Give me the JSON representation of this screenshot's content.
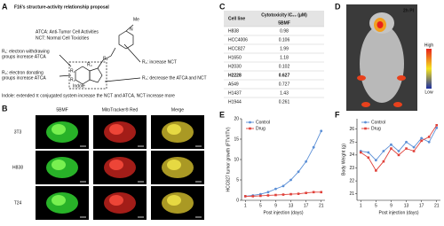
{
  "panel_a": {
    "label": "A",
    "title": "F16's structure-activity relationship proposal",
    "legend": [
      "ATCA: Anti-Tumor Cell Activities",
      "NCT: Normal Cell Toxicities"
    ],
    "structure": {
      "methyl": "Me",
      "nitrogen": "N",
      "indole": "Indole",
      "groups": [
        "R₁",
        "R₂",
        "R₃",
        "R₄"
      ]
    },
    "rules": [
      [
        "R₁: electron withdrawing",
        "groups increase ATCA"
      ],
      [
        "R₂: increase NCT"
      ],
      [
        "R₃: electron donating",
        "groups increase ATCA"
      ],
      [
        "R₄: decrease the ATCA and NCT"
      ]
    ],
    "note": "Indole: extended π conjugated system increase the NCT and ATCA, NCT increase more"
  },
  "panel_b": {
    "label": "B",
    "columns": [
      "5BMF",
      "MitoTracker® Red",
      "Merge"
    ],
    "rows": [
      "3T3",
      "H838",
      "T24"
    ]
  },
  "panel_c": {
    "label": "C",
    "header": [
      "Cell line",
      "Cytotoxicity IC₅₀ (μM)"
    ],
    "subheader": "5BMF",
    "rows": [
      [
        "H838",
        "0.98"
      ],
      [
        "HCC4006",
        "0.106"
      ],
      [
        "HCC827",
        "1.99"
      ],
      [
        "H1650",
        "1.18"
      ],
      [
        "H2030",
        "0.102"
      ],
      [
        "H2228",
        "0.627"
      ],
      [
        "A549",
        "0.727"
      ],
      [
        "H1437",
        "1.43"
      ],
      [
        "H1944",
        "0.261"
      ]
    ],
    "highlight_row": 2,
    "highlight_color": "#2b3aa0",
    "bold_row": 5
  },
  "panel_d": {
    "label": "D",
    "time": "2h PI",
    "scale": [
      "High",
      "Low"
    ]
  },
  "chart_data": [
    {
      "type": "line",
      "panel_label": "E",
      "x_label": "Post injection (days)",
      "y_label": "HCC827 tumor growth (FTV/ITV)",
      "x": [
        1,
        3,
        5,
        7,
        9,
        11,
        13,
        15,
        17,
        19,
        21
      ],
      "xlim": [
        0,
        22
      ],
      "xticks": [
        1,
        5,
        9,
        13,
        17,
        21
      ],
      "ylim": [
        0,
        20
      ],
      "yticks": [
        0,
        5,
        10,
        15,
        20
      ],
      "legend": "upper left",
      "series": [
        {
          "name": "Control",
          "color": "#5b8fd6",
          "marker": "circle",
          "values": [
            1,
            1.2,
            1.5,
            2,
            2.8,
            3.5,
            5,
            7,
            9.5,
            13,
            17
          ]
        },
        {
          "name": "Drug",
          "color": "#e0413a",
          "marker": "square",
          "values": [
            1,
            1,
            1.1,
            1.2,
            1.3,
            1.4,
            1.5,
            1.6,
            1.8,
            2,
            2
          ]
        }
      ]
    },
    {
      "type": "line",
      "panel_label": "F",
      "x_label": "Post injection (days)",
      "y_label": "Body Weight (g)",
      "x": [
        1,
        3,
        5,
        7,
        9,
        11,
        13,
        15,
        17,
        19,
        21
      ],
      "xlim": [
        0,
        22
      ],
      "xticks": [
        1,
        5,
        9,
        13,
        17,
        21
      ],
      "ylim": [
        20.5,
        26.8
      ],
      "yticks": [
        21,
        22,
        23,
        24,
        25,
        26
      ],
      "legend": "upper left",
      "series": [
        {
          "name": "Control",
          "color": "#5b8fd6",
          "marker": "circle",
          "values": [
            24.3,
            24.2,
            23.6,
            24.3,
            24.8,
            24.3,
            25.0,
            24.6,
            25.3,
            25.0,
            26.1
          ]
        },
        {
          "name": "Drug",
          "color": "#e0413a",
          "marker": "square",
          "values": [
            24.2,
            23.8,
            22.8,
            23.5,
            24.5,
            24.0,
            24.5,
            24.3,
            25.1,
            25.4,
            26.3
          ]
        }
      ]
    }
  ]
}
